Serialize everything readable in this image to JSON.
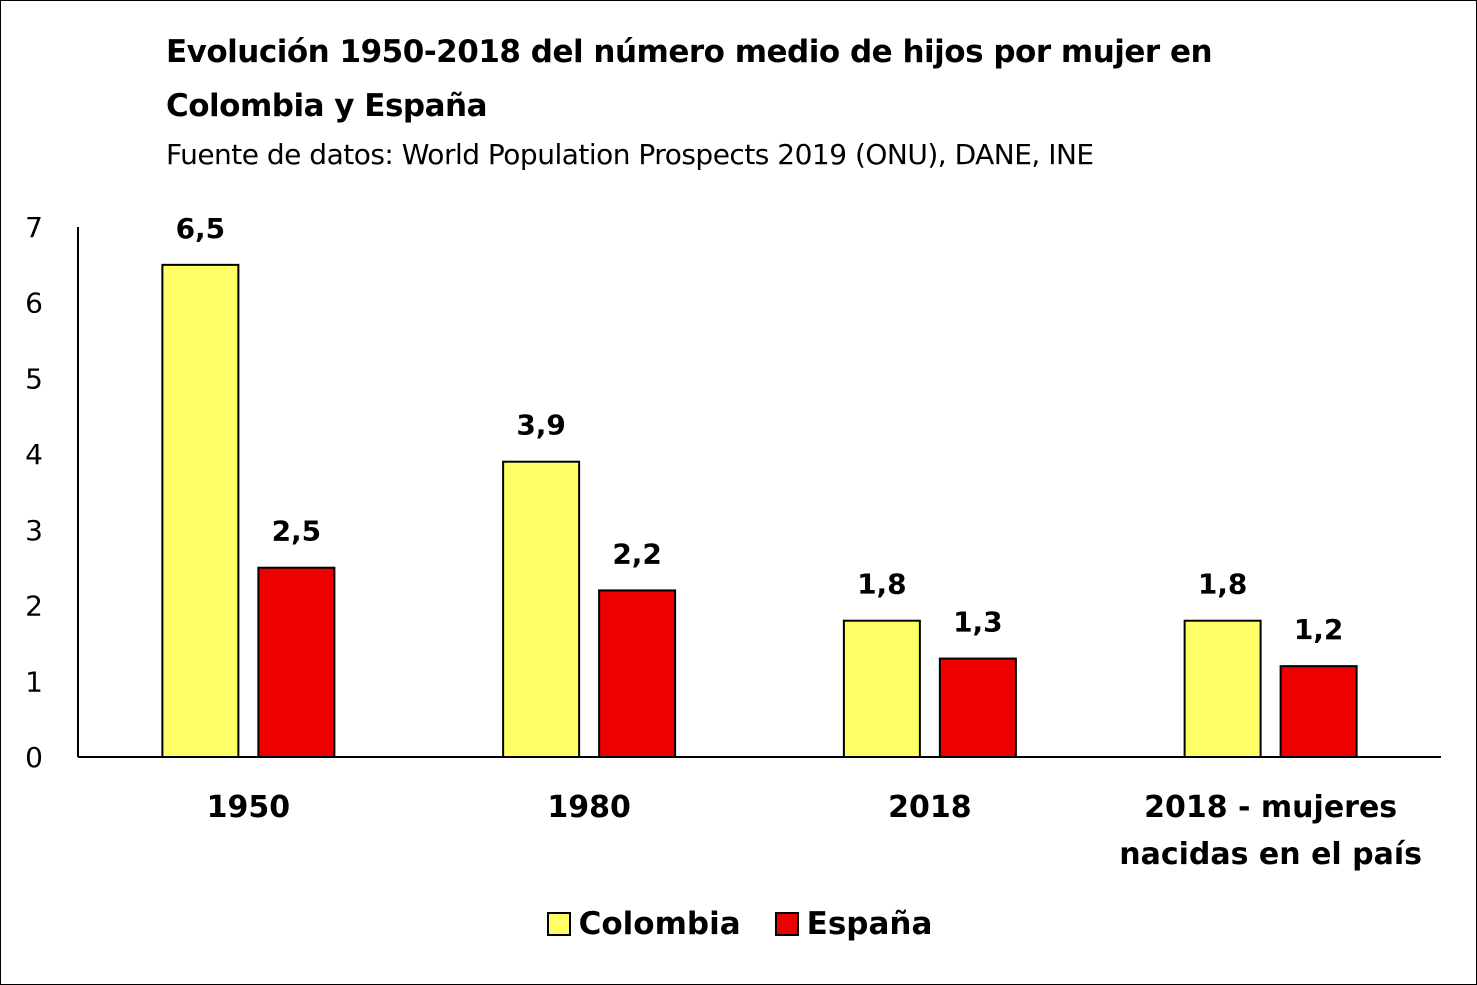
{
  "chart_data": {
    "type": "bar",
    "title_lines": [
      "Evolución  1950-2018 del número medio de hijos por mujer en",
      "Colombia  y España"
    ],
    "subtitle": "Fuente de datos: World Population Prospects 2019 (ONU), DANE, INE",
    "categories": [
      [
        "1950"
      ],
      [
        "1980"
      ],
      [
        "2018"
      ],
      [
        "2018 - mujeres",
        "nacidas en el país"
      ]
    ],
    "series": [
      {
        "name": "Colombia",
        "color": "#FFFF66",
        "values": [
          6.5,
          3.9,
          1.8,
          1.8
        ],
        "labels": [
          "6,5",
          "3,9",
          "1,8",
          "1,8"
        ]
      },
      {
        "name": "España",
        "color": "#EE0000",
        "values": [
          2.5,
          2.2,
          1.3,
          1.2
        ],
        "labels": [
          "2,5",
          "2,2",
          "1,3",
          "1,2"
        ]
      }
    ],
    "yticks": [
      "0",
      "1",
      "2",
      "3",
      "4",
      "5",
      "6",
      "7"
    ],
    "ylim": [
      0,
      7
    ],
    "grid": false,
    "legend_position": "bottom"
  }
}
